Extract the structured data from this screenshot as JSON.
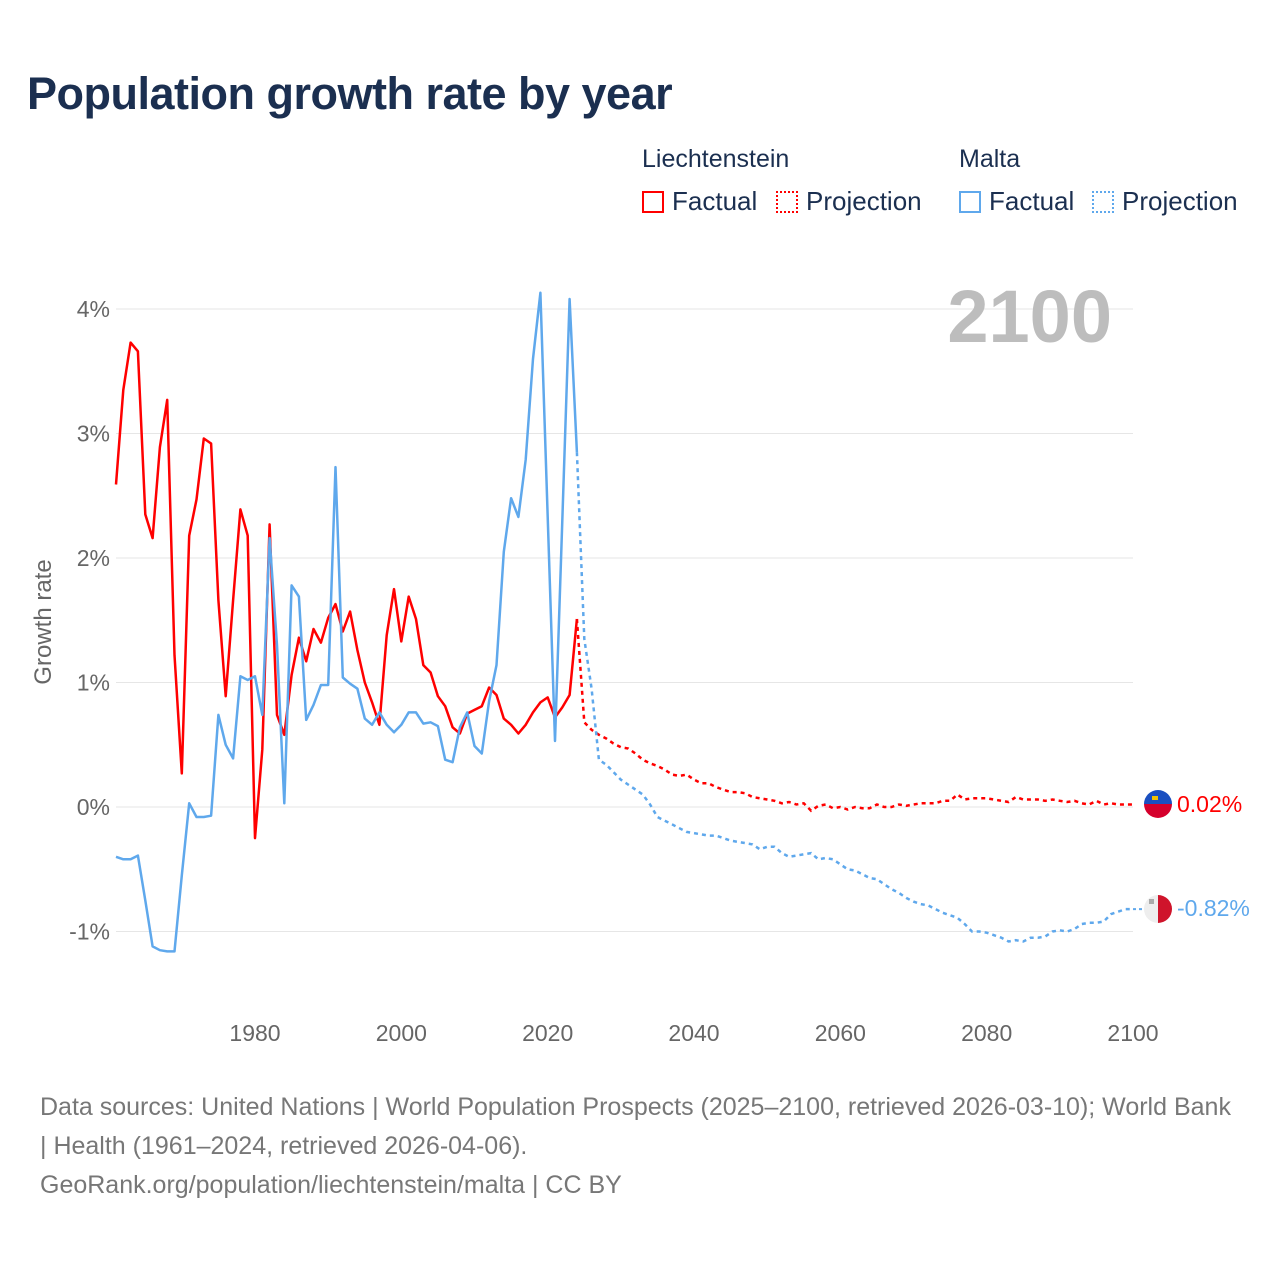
{
  "chart_data": {
    "type": "line",
    "title": "Population growth rate by year",
    "ylabel": "Growth rate",
    "xlabel": "",
    "xlim": [
      1961,
      2100
    ],
    "ylim": [
      -1.5,
      4.3
    ],
    "x_ticks": [
      "1980",
      "2000",
      "2020",
      "2040",
      "2060",
      "2080",
      "2100"
    ],
    "y_ticks": [
      {
        "value": 4,
        "label": "4%"
      },
      {
        "value": 3,
        "label": "3%"
      },
      {
        "value": 2,
        "label": "2%"
      },
      {
        "value": 1,
        "label": "1%"
      },
      {
        "value": 0,
        "label": "0%"
      },
      {
        "value": -1,
        "label": "-1%"
      }
    ],
    "grid": true,
    "year_watermark": "2100",
    "legend": {
      "placement": "top-right",
      "groups": [
        {
          "name": "Liechtenstein",
          "factual_label": "Factual",
          "projection_label": "Projection",
          "color": "#ff0000"
        },
        {
          "name": "Malta",
          "factual_label": "Factual",
          "projection_label": "Projection",
          "color": "#5fa8ec"
        }
      ]
    },
    "series": [
      {
        "name": "Liechtenstein",
        "color": "#ff0000",
        "end_label": "0.02%",
        "factual": {
          "start_year": 1961,
          "values": [
            2.59,
            3.35,
            3.73,
            3.66,
            2.35,
            2.16,
            2.89,
            3.27,
            1.22,
            0.27,
            2.18,
            2.47,
            2.96,
            2.92,
            1.66,
            0.89,
            1.66,
            2.39,
            2.18,
            -0.25,
            0.46,
            2.27,
            0.74,
            0.58,
            1.06,
            1.36,
            1.17,
            1.43,
            1.32,
            1.52,
            1.63,
            1.41,
            1.57,
            1.26,
            1.0,
            0.84,
            0.66,
            1.38,
            1.75,
            1.33,
            1.69,
            1.51,
            1.14,
            1.08,
            0.89,
            0.81,
            0.64,
            0.59,
            0.75,
            0.78,
            0.81,
            0.96,
            0.9,
            0.71,
            0.66,
            0.59,
            0.66,
            0.76,
            0.84,
            0.88,
            0.72,
            0.8,
            0.9,
            1.51
          ]
        },
        "projection": {
          "start_year": 2024,
          "values": [
            1.51,
            0.68,
            0.62,
            0.58,
            0.55,
            0.51,
            0.48,
            0.47,
            0.43,
            0.38,
            0.35,
            0.33,
            0.3,
            0.26,
            0.25,
            0.26,
            0.22,
            0.19,
            0.19,
            0.16,
            0.14,
            0.12,
            0.12,
            0.11,
            0.08,
            0.07,
            0.06,
            0.05,
            0.03,
            0.04,
            0.02,
            0.03,
            -0.03,
            0.01,
            0.02,
            -0.01,
            0.0,
            -0.02,
            0.0,
            -0.01,
            -0.01,
            0.02,
            0.0,
            0.0,
            0.02,
            0.01,
            0.02,
            0.03,
            0.03,
            0.03,
            0.05,
            0.05,
            0.1,
            0.06,
            0.07,
            0.07,
            0.07,
            0.06,
            0.05,
            0.04,
            0.08,
            0.06,
            0.06,
            0.06,
            0.05,
            0.06,
            0.05,
            0.04,
            0.05,
            0.03,
            0.02,
            0.05,
            0.02,
            0.03,
            0.02,
            0.02,
            0.02
          ]
        }
      },
      {
        "name": "Malta",
        "color": "#5fa8ec",
        "end_label": "-0.82%",
        "factual": {
          "start_year": 1961,
          "values": [
            -0.4,
            -0.42,
            -0.42,
            -0.39,
            -0.75,
            -1.12,
            -1.15,
            -1.16,
            -1.16,
            -0.55,
            0.03,
            -0.08,
            -0.08,
            -0.07,
            0.74,
            0.5,
            0.39,
            1.05,
            1.02,
            1.05,
            0.74,
            2.16,
            1.3,
            0.03,
            1.78,
            1.69,
            0.7,
            0.82,
            0.98,
            0.98,
            2.73,
            1.04,
            0.99,
            0.95,
            0.71,
            0.66,
            0.76,
            0.66,
            0.6,
            0.66,
            0.76,
            0.76,
            0.67,
            0.68,
            0.65,
            0.38,
            0.36,
            0.64,
            0.76,
            0.49,
            0.43,
            0.85,
            1.14,
            2.05,
            2.48,
            2.33,
            2.79,
            3.6,
            4.13,
            2.33,
            0.53,
            2.3,
            4.08,
            2.85
          ]
        },
        "projection": {
          "start_year": 2024,
          "values": [
            2.85,
            1.35,
            0.95,
            0.38,
            0.34,
            0.28,
            0.22,
            0.18,
            0.14,
            0.1,
            0.02,
            -0.08,
            -0.11,
            -0.14,
            -0.17,
            -0.2,
            -0.21,
            -0.22,
            -0.23,
            -0.23,
            -0.25,
            -0.27,
            -0.28,
            -0.29,
            -0.3,
            -0.34,
            -0.32,
            -0.32,
            -0.37,
            -0.4,
            -0.39,
            -0.38,
            -0.37,
            -0.42,
            -0.41,
            -0.42,
            -0.46,
            -0.5,
            -0.51,
            -0.54,
            -0.57,
            -0.58,
            -0.62,
            -0.66,
            -0.69,
            -0.73,
            -0.76,
            -0.78,
            -0.79,
            -0.82,
            -0.85,
            -0.87,
            -0.89,
            -0.94,
            -1.0,
            -1.0,
            -1.01,
            -1.03,
            -1.05,
            -1.08,
            -1.07,
            -1.08,
            -1.05,
            -1.05,
            -1.04,
            -1.0,
            -0.99,
            -1.0,
            -0.98,
            -0.94,
            -0.93,
            -0.93,
            -0.92,
            -0.86,
            -0.84,
            -0.82,
            -0.82
          ]
        }
      }
    ]
  },
  "footer": {
    "sources": "Data sources: United Nations | World Population Prospects (2025–2100, retrieved 2026-03-10); World Bank | Health (1961–2024, retrieved 2026-04-06).",
    "credit": "GeoRank.org/population/liechtenstein/malta | CC BY"
  }
}
